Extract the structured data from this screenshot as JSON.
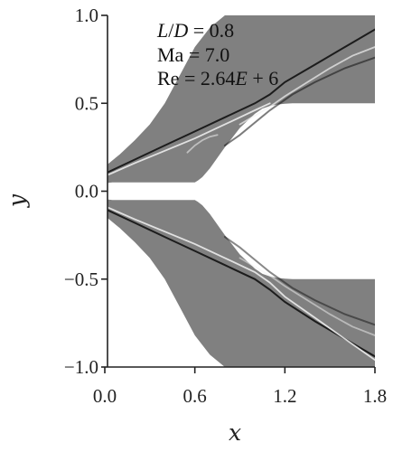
{
  "chart_data": {
    "type": "contour",
    "annotations": [
      "L/D = 0.8",
      "Ma = 7.0",
      "Re = 2.64E + 6"
    ],
    "xlabel": "x",
    "ylabel": "y",
    "xlim": [
      -0.1,
      1.8
    ],
    "ylim": [
      -1.0,
      1.0
    ],
    "xticks": [
      "0.0",
      "0.6",
      "1.2",
      "1.8"
    ],
    "yticks": [
      "1.0",
      "0.5",
      "0.0",
      "−0.5",
      "−1.0"
    ],
    "xtick_values": [
      0.0,
      0.6,
      1.2,
      1.8
    ],
    "ytick_values": [
      1.0,
      0.5,
      0.0,
      -0.5,
      -1.0
    ],
    "grid": false,
    "colors": {
      "field": "#808080",
      "shock_dark": "#111111",
      "shock_light": "#f2f2f2"
    },
    "body_upper": {
      "x": [
        -0.1,
        -0.08,
        -0.05,
        0.0,
        0.05,
        0.1,
        0.6,
        0.62,
        0.65,
        0.7,
        0.8,
        0.9,
        1.0,
        1.05,
        1.1,
        1.15,
        1.2,
        1.25,
        1.3,
        1.8
      ],
      "y": [
        0.0,
        0.025,
        0.035,
        0.045,
        0.05,
        0.05,
        0.05,
        0.06,
        0.08,
        0.13,
        0.25,
        0.36,
        0.44,
        0.47,
        0.485,
        0.493,
        0.497,
        0.5,
        0.5,
        0.5
      ]
    },
    "body_lower": {
      "x": [
        -0.1,
        -0.08,
        -0.05,
        0.0,
        0.05,
        0.1,
        0.6,
        0.62,
        0.65,
        0.7,
        0.8,
        0.9,
        1.0,
        1.05,
        1.1,
        1.15,
        1.2,
        1.25,
        1.3,
        1.8
      ],
      "y": [
        0.0,
        -0.025,
        -0.035,
        -0.045,
        -0.05,
        -0.05,
        -0.05,
        -0.06,
        -0.08,
        -0.13,
        -0.25,
        -0.36,
        -0.44,
        -0.47,
        -0.485,
        -0.493,
        -0.497,
        -0.5,
        -0.5,
        -0.5
      ]
    },
    "boundary_upper": {
      "x": [
        -0.1,
        -0.09,
        -0.06,
        0.0,
        0.1,
        0.2,
        0.3,
        0.4,
        0.5,
        0.6,
        0.7,
        0.8
      ],
      "y": [
        0.0,
        0.06,
        0.1,
        0.14,
        0.21,
        0.29,
        0.38,
        0.5,
        0.66,
        0.82,
        0.93,
        1.0
      ]
    },
    "boundary_lower": {
      "x": [
        -0.1,
        -0.09,
        -0.06,
        0.0,
        0.1,
        0.2,
        0.3,
        0.4,
        0.5,
        0.6,
        0.7,
        0.8
      ],
      "y": [
        0.0,
        -0.06,
        -0.1,
        -0.14,
        -0.21,
        -0.29,
        -0.38,
        -0.5,
        -0.66,
        -0.82,
        -0.93,
        -1.0
      ]
    },
    "shocks": [
      {
        "tone": "dark",
        "opacity": 0.9,
        "x": [
          0.0,
          0.2,
          0.4,
          0.6,
          0.8,
          1.0,
          1.1,
          1.2,
          1.4,
          1.6,
          1.8
        ],
        "y": [
          0.1,
          0.18,
          0.26,
          0.34,
          0.42,
          0.5,
          0.55,
          0.62,
          0.72,
          0.82,
          0.92
        ]
      },
      {
        "tone": "light",
        "opacity": 0.85,
        "x": [
          0.0,
          0.2,
          0.4,
          0.6,
          0.8,
          1.0,
          1.1
        ],
        "y": [
          0.085,
          0.16,
          0.23,
          0.3,
          0.38,
          0.46,
          0.5
        ]
      },
      {
        "tone": "light",
        "opacity": 0.7,
        "x": [
          0.9,
          1.0,
          1.1,
          1.2,
          1.35,
          1.5,
          1.65,
          1.8
        ],
        "y": [
          0.38,
          0.43,
          0.48,
          0.54,
          0.62,
          0.7,
          0.77,
          0.82
        ]
      },
      {
        "tone": "dark",
        "opacity": 0.55,
        "x": [
          0.8,
          0.9,
          1.0,
          1.1,
          1.25,
          1.4,
          1.6,
          1.8
        ],
        "y": [
          0.26,
          0.32,
          0.39,
          0.46,
          0.55,
          0.62,
          0.7,
          0.76
        ]
      },
      {
        "tone": "light",
        "opacity": 0.55,
        "x": [
          0.55,
          0.6,
          0.65,
          0.7,
          0.75
        ],
        "y": [
          0.22,
          0.26,
          0.29,
          0.31,
          0.32
        ]
      },
      {
        "tone": "dark",
        "opacity": 0.9,
        "x": [
          0.0,
          0.2,
          0.4,
          0.6,
          0.8,
          1.0,
          1.1,
          1.2,
          1.4,
          1.6,
          1.8
        ],
        "y": [
          -0.1,
          -0.18,
          -0.26,
          -0.34,
          -0.42,
          -0.5,
          -0.56,
          -0.63,
          -0.74,
          -0.84,
          -0.94
        ]
      },
      {
        "tone": "light",
        "opacity": 0.85,
        "x": [
          0.0,
          0.2,
          0.4,
          0.6,
          0.8,
          1.0,
          1.1,
          1.2,
          1.4,
          1.6,
          1.8
        ],
        "y": [
          -0.085,
          -0.16,
          -0.23,
          -0.3,
          -0.38,
          -0.46,
          -0.52,
          -0.6,
          -0.72,
          -0.84,
          -0.96
        ]
      },
      {
        "tone": "dark",
        "opacity": 0.5,
        "x": [
          0.8,
          0.9,
          1.0,
          1.1,
          1.25,
          1.4,
          1.6,
          1.8
        ],
        "y": [
          -0.26,
          -0.32,
          -0.39,
          -0.46,
          -0.55,
          -0.62,
          -0.7,
          -0.76
        ]
      },
      {
        "tone": "light",
        "opacity": 0.5,
        "x": [
          0.9,
          1.0,
          1.1,
          1.2,
          1.35,
          1.5,
          1.65,
          1.8
        ],
        "y": [
          -0.38,
          -0.43,
          -0.48,
          -0.54,
          -0.62,
          -0.7,
          -0.77,
          -0.82
        ]
      }
    ]
  }
}
